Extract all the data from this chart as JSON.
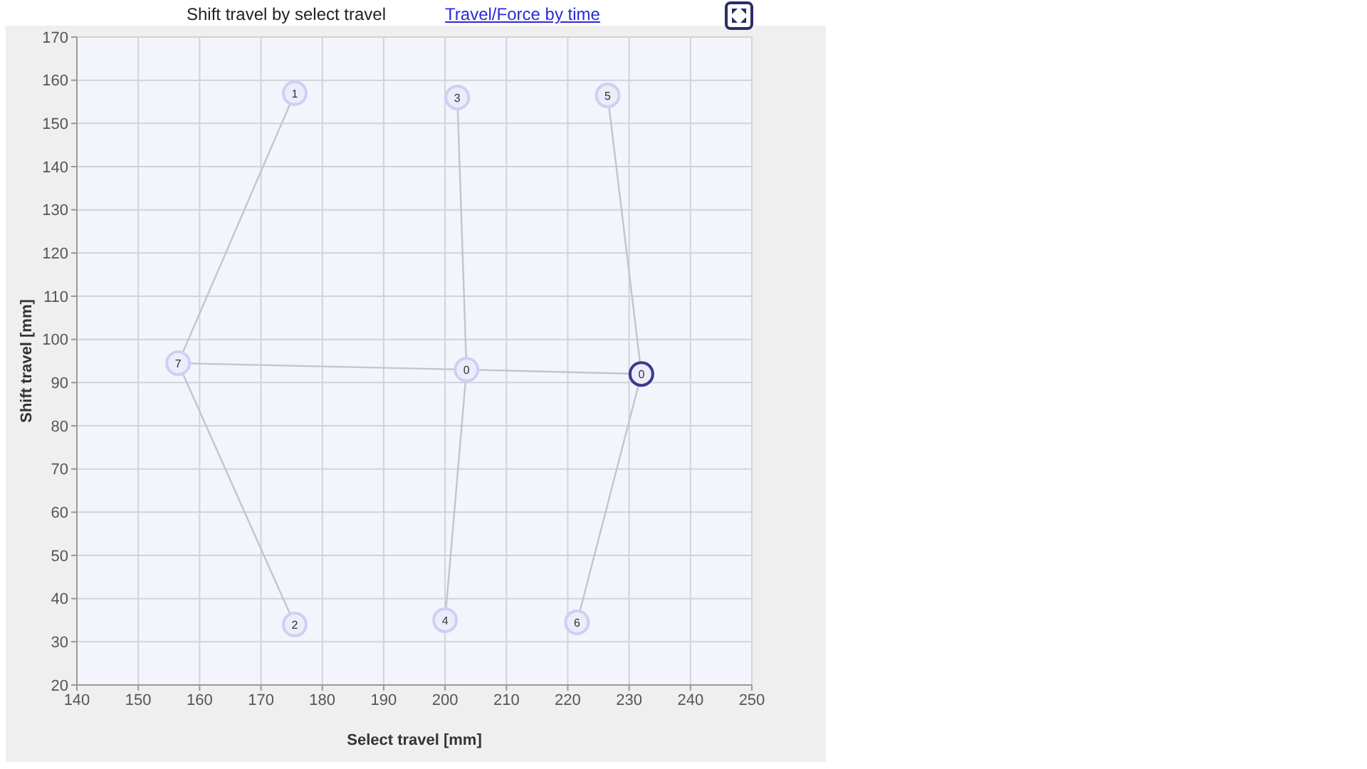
{
  "chart_data": {
    "type": "scatter",
    "title": "Shift travel by select travel",
    "subtitle": "Travel/Force by time",
    "xlabel": "Select travel [mm]",
    "ylabel": "Shift travel [mm]",
    "xlim": [
      140,
      250
    ],
    "xticks": [
      140,
      150,
      160,
      170,
      180,
      190,
      200,
      210,
      220,
      230,
      240,
      250
    ],
    "ylim": [
      20,
      170
    ],
    "yticks": [
      20,
      30,
      40,
      50,
      60,
      70,
      80,
      90,
      100,
      110,
      120,
      130,
      140,
      150,
      160,
      170
    ],
    "grid": true,
    "series": [
      {
        "type": "line",
        "color": "#c4c4cc",
        "x": [
          175.5,
          156.5,
          175.5
        ],
        "values": [
          157,
          94.5,
          34
        ]
      },
      {
        "type": "line",
        "color": "#c4c4cc",
        "x": [
          202,
          203.5,
          200
        ],
        "values": [
          156,
          93,
          35
        ]
      },
      {
        "type": "line",
        "color": "#c4c4cc",
        "x": [
          226.5,
          232,
          221.5
        ],
        "values": [
          156.5,
          92,
          34.5
        ]
      },
      {
        "type": "line",
        "color": "#c4c4cc",
        "x": [
          156.5,
          203.5,
          232
        ],
        "values": [
          94.5,
          93,
          92
        ]
      },
      {
        "color": "#cfcff2",
        "marker": "circle",
        "x": [
          175.5,
          175.5,
          202,
          200,
          226.5,
          221.5,
          156.5,
          203.5
        ],
        "values": [
          157,
          34,
          156,
          35,
          156.5,
          34.5,
          94.5,
          93
        ]
      },
      {
        "color": "#3a3a8c",
        "marker": "circle",
        "x": [
          232
        ],
        "values": [
          92
        ]
      }
    ],
    "annotations": [
      {
        "text": "1",
        "x": 175.5,
        "y": 157
      },
      {
        "text": "2",
        "x": 175.5,
        "y": 34
      },
      {
        "text": "3",
        "x": 202,
        "y": 156
      },
      {
        "text": "4",
        "x": 200,
        "y": 35
      },
      {
        "text": "5",
        "x": 226.5,
        "y": 156.5
      },
      {
        "text": "6",
        "x": 221.5,
        "y": 34.5
      },
      {
        "text": "7",
        "x": 156.5,
        "y": 94.5
      },
      {
        "text": "0",
        "x": 203.5,
        "y": 93
      },
      {
        "text": "0",
        "x": 232,
        "y": 92
      }
    ]
  }
}
